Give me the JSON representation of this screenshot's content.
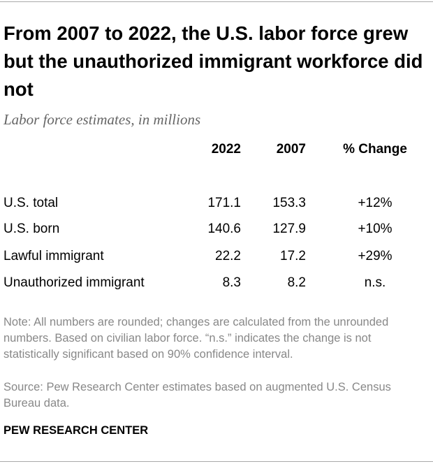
{
  "header": {
    "title": "From 2007 to 2022, the U.S. labor force grew but the unauthorized immigrant workforce did not",
    "subtitle": "Labor force estimates, in millions"
  },
  "table": {
    "columns": [
      "2022",
      "2007",
      "% Change"
    ],
    "rows": [
      [
        "U.S. total",
        "171.1",
        "153.3",
        "+12%"
      ],
      [
        "U.S. born",
        "140.6",
        "127.9",
        "+10%"
      ],
      [
        "Lawful immigrant",
        "22.2",
        "17.2",
        "+29%"
      ],
      [
        "Unauthorized immigrant",
        "8.3",
        "8.2",
        "n.s."
      ]
    ]
  },
  "notes": {
    "note": "Note: All numbers are rounded; changes are calculated from the unrounded numbers. Based on civilian labor force. “n.s.” indicates the change is not statistically significant based on 90% confidence interval.",
    "source": "Source: Pew Research Center estimates based on augmented U.S. Census Bureau data."
  },
  "footer": {
    "logo": "PEW RESEARCH CENTER"
  }
}
